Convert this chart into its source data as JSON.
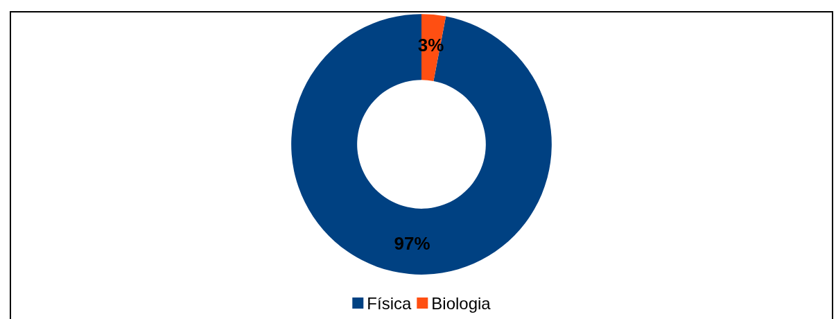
{
  "chart_data": {
    "type": "donut",
    "categories": [
      "Física",
      "Biologia"
    ],
    "values": [
      97,
      3
    ],
    "colors": [
      "#004182",
      "#ff4f12"
    ],
    "value_labels": [
      "97%",
      "3%"
    ],
    "legend": "bottom"
  }
}
